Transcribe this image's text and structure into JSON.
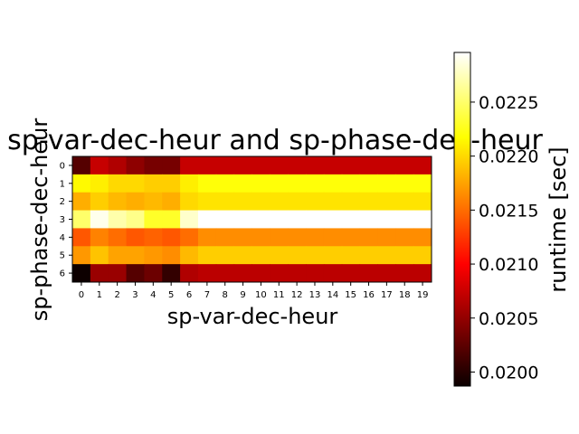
{
  "chart_data": {
    "type": "heatmap",
    "title": "sp-var-dec-heur and sp-phase-dec-heur",
    "xlabel": "sp-var-dec-heur",
    "ylabel": "sp-phase-dec-heur",
    "x_ticks": [
      "0",
      "1",
      "2",
      "3",
      "4",
      "5",
      "6",
      "7",
      "8",
      "9",
      "10",
      "11",
      "12",
      "13",
      "14",
      "15",
      "16",
      "17",
      "18",
      "19"
    ],
    "y_ticks": [
      "0",
      "1",
      "2",
      "3",
      "4",
      "5",
      "6"
    ],
    "colorbar": {
      "label": "runtime [sec]",
      "colormap": "hot",
      "vmin": 0.01987,
      "vmax": 0.02296,
      "ticks": [
        "0.0200",
        "0.0205",
        "0.0210",
        "0.0215",
        "0.0220",
        "0.0225"
      ]
    },
    "values": [
      [
        0.0202,
        0.0207,
        0.0206,
        0.02045,
        0.02035,
        0.02035,
        0.0207,
        0.0207,
        0.0207,
        0.0207,
        0.0207,
        0.0207,
        0.0207,
        0.0207,
        0.0207,
        0.0207,
        0.0207,
        0.0207,
        0.0207,
        0.0207
      ],
      [
        0.02215,
        0.0221,
        0.022,
        0.022,
        0.02195,
        0.02195,
        0.0221,
        0.0222,
        0.0222,
        0.0222,
        0.0222,
        0.0222,
        0.0222,
        0.0222,
        0.0222,
        0.0222,
        0.0222,
        0.0222,
        0.0222,
        0.0222
      ],
      [
        0.0218,
        0.02195,
        0.02185,
        0.0218,
        0.02185,
        0.0218,
        0.022,
        0.02205,
        0.02205,
        0.02205,
        0.02205,
        0.02205,
        0.02205,
        0.02205,
        0.02205,
        0.02205,
        0.02205,
        0.02205,
        0.02205,
        0.02205
      ],
      [
        0.0225,
        0.0229,
        0.0227,
        0.0226,
        0.0223,
        0.0223,
        0.0228,
        0.02296,
        0.02296,
        0.02296,
        0.02296,
        0.02296,
        0.02296,
        0.02296,
        0.02296,
        0.02296,
        0.02296,
        0.02296,
        0.02296,
        0.02296
      ],
      [
        0.0214,
        0.0216,
        0.0215,
        0.0214,
        0.02145,
        0.0214,
        0.0215,
        0.02165,
        0.02165,
        0.02165,
        0.02165,
        0.02165,
        0.02165,
        0.02165,
        0.02165,
        0.02165,
        0.02165,
        0.02165,
        0.02165,
        0.02165
      ],
      [
        0.0217,
        0.0219,
        0.02175,
        0.02175,
        0.0217,
        0.02165,
        0.02185,
        0.02195,
        0.02195,
        0.02195,
        0.02195,
        0.02195,
        0.02195,
        0.02195,
        0.02195,
        0.02195,
        0.02195,
        0.02195,
        0.02195,
        0.02195
      ],
      [
        0.01988,
        0.0205,
        0.0205,
        0.0202,
        0.0203,
        0.02005,
        0.0206,
        0.02065,
        0.02065,
        0.02065,
        0.02065,
        0.02065,
        0.02065,
        0.02065,
        0.02065,
        0.02065,
        0.02065,
        0.02065,
        0.02065,
        0.02065
      ]
    ]
  }
}
